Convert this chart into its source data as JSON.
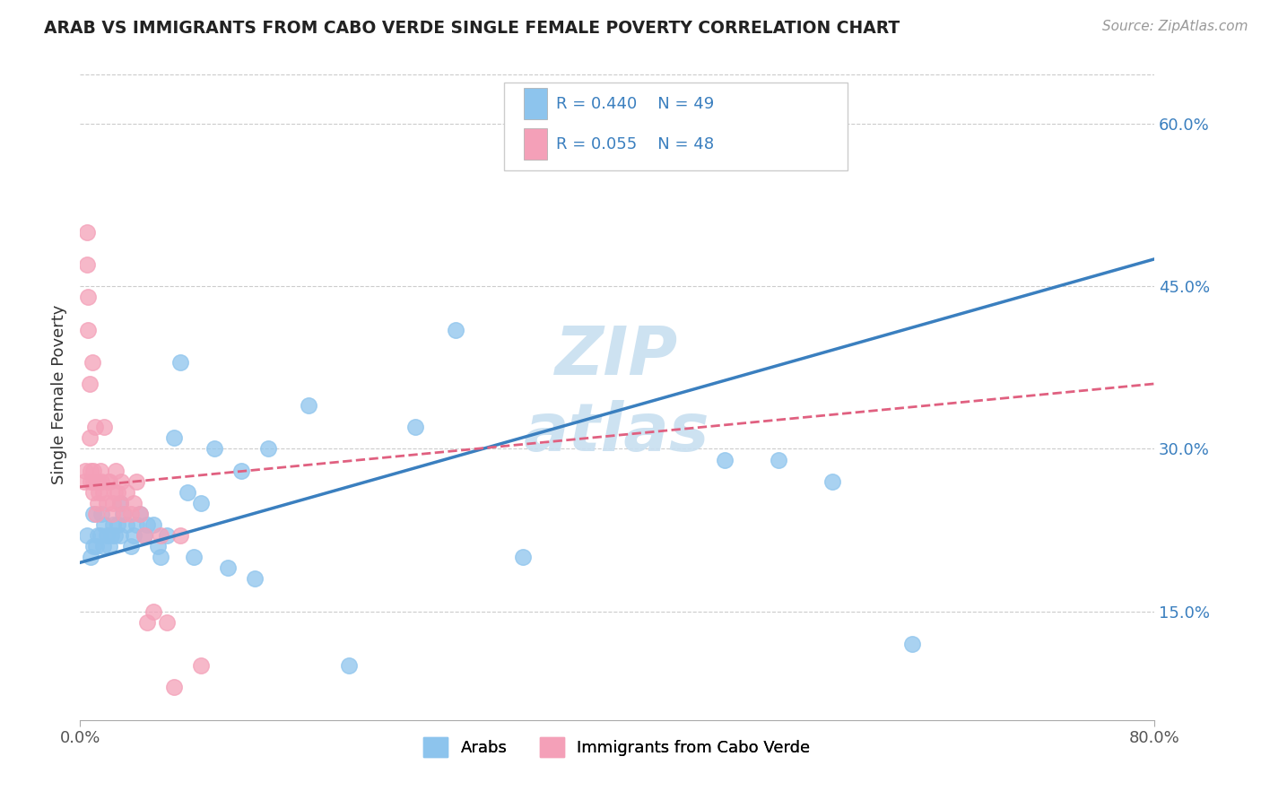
{
  "title": "ARAB VS IMMIGRANTS FROM CABO VERDE SINGLE FEMALE POVERTY CORRELATION CHART",
  "source": "Source: ZipAtlas.com",
  "ylabel": "Single Female Poverty",
  "x_min": 0.0,
  "x_max": 0.8,
  "y_min": 0.05,
  "y_max": 0.65,
  "y_ticks_right": [
    0.15,
    0.3,
    0.45,
    0.6
  ],
  "y_tick_labels_right": [
    "15.0%",
    "30.0%",
    "45.0%",
    "60.0%"
  ],
  "legend_arab": "Arabs",
  "legend_cabo": "Immigrants from Cabo Verde",
  "r_arab": "R = 0.440",
  "n_arab": "N = 49",
  "r_cabo": "R = 0.055",
  "n_cabo": "N = 48",
  "arab_color": "#8DC4ED",
  "cabo_color": "#F4A0B8",
  "arab_line_color": "#3A7FBF",
  "cabo_line_color": "#E06080",
  "watermark_color": "#C8DFF0",
  "arab_x": [
    0.005,
    0.008,
    0.01,
    0.01,
    0.012,
    0.013,
    0.015,
    0.016,
    0.017,
    0.018,
    0.02,
    0.022,
    0.023,
    0.025,
    0.026,
    0.028,
    0.03,
    0.03,
    0.032,
    0.035,
    0.038,
    0.04,
    0.042,
    0.045,
    0.048,
    0.05,
    0.055,
    0.058,
    0.06,
    0.065,
    0.07,
    0.075,
    0.08,
    0.085,
    0.09,
    0.1,
    0.11,
    0.12,
    0.13,
    0.14,
    0.17,
    0.2,
    0.25,
    0.28,
    0.33,
    0.48,
    0.52,
    0.56,
    0.62
  ],
  "arab_y": [
    0.22,
    0.2,
    0.21,
    0.24,
    0.21,
    0.22,
    0.22,
    0.24,
    0.21,
    0.23,
    0.22,
    0.21,
    0.22,
    0.23,
    0.22,
    0.23,
    0.22,
    0.25,
    0.24,
    0.23,
    0.21,
    0.22,
    0.23,
    0.24,
    0.22,
    0.23,
    0.23,
    0.21,
    0.2,
    0.22,
    0.31,
    0.38,
    0.26,
    0.2,
    0.25,
    0.3,
    0.19,
    0.28,
    0.18,
    0.3,
    0.34,
    0.1,
    0.32,
    0.41,
    0.2,
    0.29,
    0.29,
    0.27,
    0.12
  ],
  "cabo_x": [
    0.003,
    0.004,
    0.005,
    0.005,
    0.006,
    0.006,
    0.007,
    0.007,
    0.008,
    0.008,
    0.009,
    0.01,
    0.01,
    0.01,
    0.011,
    0.012,
    0.012,
    0.013,
    0.013,
    0.014,
    0.015,
    0.016,
    0.017,
    0.018,
    0.02,
    0.021,
    0.022,
    0.024,
    0.025,
    0.026,
    0.027,
    0.028,
    0.03,
    0.031,
    0.033,
    0.035,
    0.038,
    0.04,
    0.042,
    0.045,
    0.048,
    0.05,
    0.055,
    0.06,
    0.065,
    0.07,
    0.075,
    0.09
  ],
  "cabo_y": [
    0.27,
    0.28,
    0.5,
    0.47,
    0.44,
    0.41,
    0.36,
    0.31,
    0.27,
    0.28,
    0.38,
    0.26,
    0.28,
    0.27,
    0.32,
    0.27,
    0.24,
    0.25,
    0.27,
    0.26,
    0.28,
    0.27,
    0.26,
    0.32,
    0.25,
    0.27,
    0.27,
    0.24,
    0.25,
    0.26,
    0.28,
    0.26,
    0.25,
    0.27,
    0.24,
    0.26,
    0.24,
    0.25,
    0.27,
    0.24,
    0.22,
    0.14,
    0.15,
    0.22,
    0.14,
    0.08,
    0.22,
    0.1
  ],
  "arab_trend_x0": 0.0,
  "arab_trend_y0": 0.195,
  "arab_trend_x1": 0.8,
  "arab_trend_y1": 0.475,
  "cabo_trend_x0": 0.0,
  "cabo_trend_y0": 0.265,
  "cabo_trend_x1": 0.8,
  "cabo_trend_y1": 0.36
}
